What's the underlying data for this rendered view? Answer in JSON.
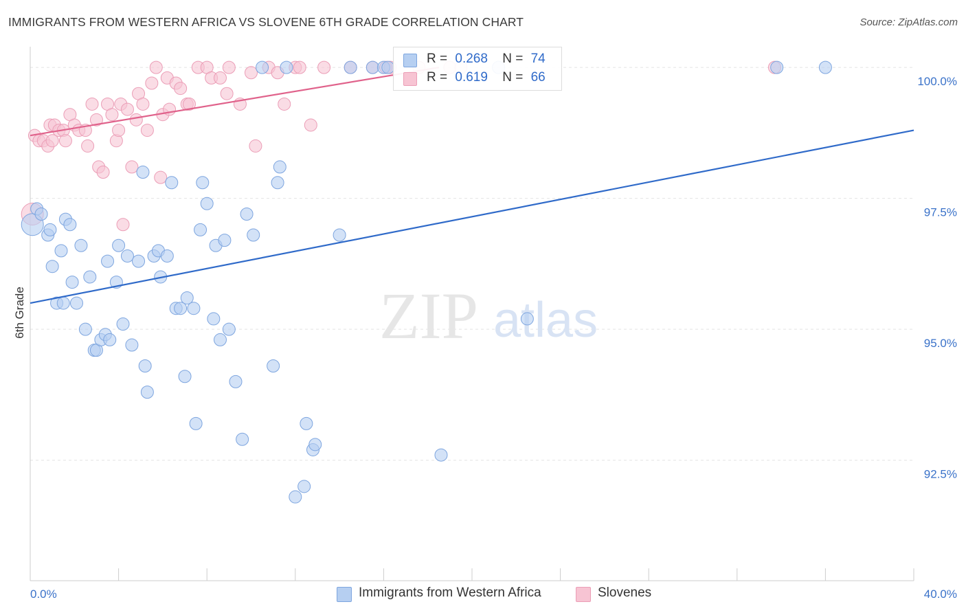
{
  "title": "IMMIGRANTS FROM WESTERN AFRICA VS SLOVENE 6TH GRADE CORRELATION CHART",
  "source": "Source: ZipAtlas.com",
  "watermark": {
    "zip": "ZIP",
    "atlas": "atlas"
  },
  "colors": {
    "blue_fill": "#b6cff1",
    "blue_stroke": "#7da5df",
    "blue_line": "#2f6ac9",
    "pink_fill": "#f7c4d3",
    "pink_stroke": "#eb9db6",
    "pink_line": "#e0628b",
    "axis_text": "#3a72c9",
    "grid": "#e3e3e3"
  },
  "legend": {
    "rows": [
      {
        "r_label": "R =",
        "r_value": "0.268",
        "n_label": "N =",
        "n_value": "74",
        "color": "blue"
      },
      {
        "r_label": "R =",
        "r_value": "0.619",
        "n_label": "N =",
        "n_value": "66",
        "color": "pink"
      }
    ]
  },
  "chart_data": {
    "type": "scatter",
    "title": "IMMIGRANTS FROM WESTERN AFRICA VS SLOVENE 6TH GRADE CORRELATION CHART",
    "xlabel": "",
    "ylabel": "6th Grade",
    "xlim": [
      0,
      40
    ],
    "ylim": [
      90.2,
      100.5
    ],
    "x_tick_labels": [
      "0.0%",
      "40.0%"
    ],
    "y_ticks": [
      92.5,
      95.0,
      97.5,
      100.0
    ],
    "y_tick_labels": [
      "92.5%",
      "95.0%",
      "97.5%",
      "100.0%"
    ],
    "grid": true,
    "legend_position": "top-center",
    "series": [
      {
        "name": "Immigrants from Western Africa",
        "color": "blue",
        "trend": {
          "x": [
            0,
            40
          ],
          "y": [
            95.5,
            98.8
          ]
        },
        "points": [
          [
            0.1,
            97.0
          ],
          [
            0.3,
            97.3
          ],
          [
            0.5,
            97.2
          ],
          [
            0.8,
            96.8
          ],
          [
            0.9,
            96.9
          ],
          [
            1.0,
            96.2
          ],
          [
            1.4,
            96.5
          ],
          [
            1.6,
            97.1
          ],
          [
            1.8,
            97.0
          ],
          [
            1.2,
            95.5
          ],
          [
            1.9,
            95.9
          ],
          [
            2.1,
            95.5
          ],
          [
            2.3,
            96.6
          ],
          [
            2.5,
            95.0
          ],
          [
            2.7,
            96.0
          ],
          [
            2.9,
            94.6
          ],
          [
            3.0,
            94.6
          ],
          [
            3.2,
            94.8
          ],
          [
            3.4,
            94.9
          ],
          [
            3.5,
            96.3
          ],
          [
            3.6,
            94.8
          ],
          [
            3.9,
            95.9
          ],
          [
            4.0,
            96.6
          ],
          [
            4.2,
            95.1
          ],
          [
            4.4,
            96.4
          ],
          [
            4.6,
            94.7
          ],
          [
            4.9,
            96.3
          ],
          [
            5.1,
            98.0
          ],
          [
            5.2,
            94.3
          ],
          [
            5.3,
            93.8
          ],
          [
            5.6,
            96.4
          ],
          [
            5.8,
            96.5
          ],
          [
            5.9,
            96.0
          ],
          [
            6.2,
            96.4
          ],
          [
            6.4,
            97.8
          ],
          [
            6.6,
            95.4
          ],
          [
            6.8,
            95.4
          ],
          [
            7.0,
            94.1
          ],
          [
            7.1,
            95.6
          ],
          [
            7.4,
            95.4
          ],
          [
            7.5,
            93.2
          ],
          [
            7.7,
            96.9
          ],
          [
            7.8,
            97.8
          ],
          [
            8.0,
            97.4
          ],
          [
            8.3,
            95.2
          ],
          [
            8.4,
            96.6
          ],
          [
            8.6,
            94.8
          ],
          [
            8.8,
            96.7
          ],
          [
            9.0,
            95.0
          ],
          [
            9.3,
            94.0
          ],
          [
            9.6,
            92.9
          ],
          [
            9.8,
            97.2
          ],
          [
            10.1,
            96.8
          ],
          [
            10.5,
            100.0
          ],
          [
            11.0,
            94.3
          ],
          [
            11.2,
            97.8
          ],
          [
            11.3,
            98.1
          ],
          [
            11.6,
            100.0
          ],
          [
            12.0,
            91.8
          ],
          [
            12.4,
            92.0
          ],
          [
            12.5,
            93.2
          ],
          [
            12.8,
            92.7
          ],
          [
            12.9,
            92.8
          ],
          [
            14.0,
            96.8
          ],
          [
            14.5,
            100.0
          ],
          [
            15.5,
            100.0
          ],
          [
            16.0,
            100.0
          ],
          [
            16.2,
            100.0
          ],
          [
            18.6,
            92.6
          ],
          [
            21.2,
            100.0
          ],
          [
            22.5,
            95.2
          ],
          [
            33.8,
            100.0
          ],
          [
            36.0,
            100.0
          ],
          [
            1.5,
            95.5
          ]
        ]
      },
      {
        "name": "Slovenes",
        "color": "pink",
        "trend": {
          "x": [
            0,
            18.5
          ],
          "y": [
            98.7,
            100.0
          ]
        },
        "points": [
          [
            0.1,
            97.2
          ],
          [
            0.2,
            98.7
          ],
          [
            0.4,
            98.6
          ],
          [
            0.6,
            98.6
          ],
          [
            0.8,
            98.5
          ],
          [
            0.9,
            98.9
          ],
          [
            1.1,
            98.9
          ],
          [
            1.3,
            98.8
          ],
          [
            1.5,
            98.8
          ],
          [
            1.6,
            98.6
          ],
          [
            1.8,
            99.1
          ],
          [
            2.0,
            98.9
          ],
          [
            2.2,
            98.8
          ],
          [
            2.5,
            98.8
          ],
          [
            2.6,
            98.5
          ],
          [
            2.8,
            99.3
          ],
          [
            3.0,
            99.0
          ],
          [
            3.1,
            98.1
          ],
          [
            3.3,
            98.0
          ],
          [
            3.5,
            99.3
          ],
          [
            3.7,
            99.1
          ],
          [
            3.9,
            98.6
          ],
          [
            4.0,
            98.8
          ],
          [
            4.1,
            99.3
          ],
          [
            4.2,
            97.0
          ],
          [
            4.4,
            99.2
          ],
          [
            4.6,
            98.1
          ],
          [
            4.8,
            99.0
          ],
          [
            4.9,
            99.5
          ],
          [
            5.1,
            99.3
          ],
          [
            5.3,
            98.8
          ],
          [
            5.5,
            99.7
          ],
          [
            5.7,
            100.0
          ],
          [
            5.9,
            97.9
          ],
          [
            6.0,
            99.1
          ],
          [
            6.2,
            99.8
          ],
          [
            6.3,
            99.2
          ],
          [
            6.6,
            99.7
          ],
          [
            6.8,
            99.6
          ],
          [
            7.1,
            99.3
          ],
          [
            7.2,
            99.3
          ],
          [
            7.6,
            100.0
          ],
          [
            8.0,
            100.0
          ],
          [
            8.2,
            99.8
          ],
          [
            8.6,
            99.8
          ],
          [
            8.9,
            99.5
          ],
          [
            9.0,
            100.0
          ],
          [
            9.5,
            99.3
          ],
          [
            10.0,
            99.9
          ],
          [
            10.2,
            98.5
          ],
          [
            10.8,
            100.0
          ],
          [
            11.2,
            99.9
          ],
          [
            11.5,
            99.3
          ],
          [
            12.0,
            100.0
          ],
          [
            12.2,
            100.0
          ],
          [
            12.7,
            98.9
          ],
          [
            13.3,
            100.0
          ],
          [
            14.5,
            100.0
          ],
          [
            15.5,
            100.0
          ],
          [
            16.1,
            100.0
          ],
          [
            16.3,
            100.0
          ],
          [
            17.6,
            100.0
          ],
          [
            19.0,
            100.0
          ],
          [
            19.5,
            100.0
          ],
          [
            33.7,
            100.0
          ],
          [
            1.0,
            98.6
          ]
        ]
      }
    ]
  },
  "bottom_legend": [
    {
      "label": "Immigrants from Western Africa",
      "color": "blue"
    },
    {
      "label": "Slovenes",
      "color": "pink"
    }
  ]
}
